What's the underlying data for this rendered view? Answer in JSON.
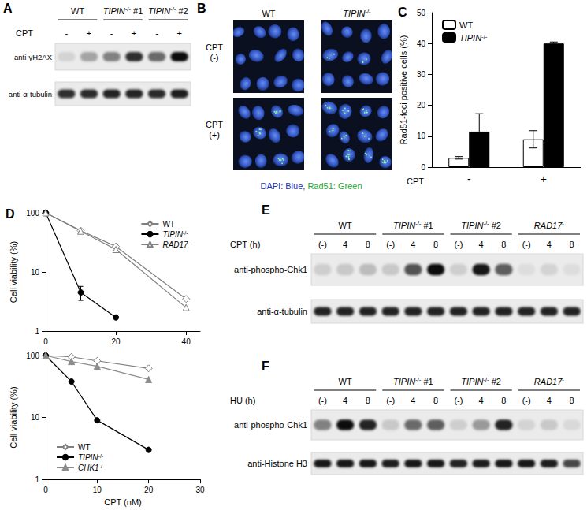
{
  "panels": [
    {
      "panel": "A",
      "groups": [
        "WT",
        "TIPIN-/- #1",
        "TIPIN-/- #2"
      ],
      "treatment": "CPT",
      "conditions": [
        "-",
        "+",
        "-",
        "+",
        "-",
        "+"
      ],
      "rows": [
        {
          "antibody": "anti-γH2AX",
          "band_intensity": [
            0.1,
            0.3,
            0.45,
            0.8,
            0.55,
            0.95
          ]
        },
        {
          "antibody": "anti-α-tubulin",
          "band_intensity": [
            0.8,
            0.82,
            0.85,
            0.85,
            0.82,
            0.88
          ]
        }
      ]
    },
    {
      "panel": "B",
      "columns": [
        "WT",
        "TIPIN-/-"
      ],
      "rows": [
        "CPT (-)",
        "CPT (+)"
      ],
      "caption": [
        {
          "text": "DAPI: Blue,",
          "color": "#2233bb"
        },
        {
          "text": "Rad51: Green",
          "color": "#22aa33"
        }
      ]
    },
    {
      "panel": "E",
      "groups": [
        "WT",
        "TIPIN-/- #1",
        "TIPIN-/- #2",
        "RAD17-"
      ],
      "treatment": "CPT (h)",
      "conditions": [
        "(-)",
        "4",
        "8",
        "(-)",
        "4",
        "8",
        "(-)",
        "4",
        "8",
        "(-)",
        "4",
        "8"
      ],
      "rows": [
        {
          "antibody": "anti-phospho-Chk1",
          "band_intensity": [
            0.12,
            0.15,
            0.2,
            0.15,
            0.65,
            0.95,
            0.12,
            0.9,
            0.6,
            0.06,
            0.1,
            0.06
          ]
        },
        {
          "antibody": "anti-α-tubulin",
          "band_intensity": [
            0.85,
            0.85,
            0.85,
            0.85,
            0.85,
            0.85,
            0.85,
            0.85,
            0.85,
            0.85,
            0.85,
            0.85
          ]
        }
      ]
    },
    {
      "panel": "F",
      "groups": [
        "WT",
        "TIPIN-/- #1",
        "TIPIN-/- #2",
        "RAD17-"
      ],
      "treatment": "HU (h)",
      "conditions": [
        "(-)",
        "4",
        "8",
        "(-)",
        "4",
        "8",
        "(-)",
        "4",
        "8",
        "(-)",
        "4",
        "8"
      ],
      "rows": [
        {
          "antibody": "anti-phospho-Chk1",
          "band_intensity": [
            0.45,
            0.95,
            0.85,
            0.15,
            0.55,
            0.6,
            0.12,
            0.35,
            0.85,
            0.1,
            0.15,
            0.08
          ]
        },
        {
          "antibody": "anti-Histone H3",
          "band_intensity": [
            0.9,
            0.9,
            0.9,
            0.88,
            0.9,
            0.9,
            0.85,
            0.88,
            0.9,
            0.9,
            0.88,
            0.7
          ]
        }
      ]
    }
  ],
  "chart_data": [
    {
      "panel": "C",
      "type": "bar",
      "x_label": "CPT",
      "y_label": "Rad51-foci positive cells (%)",
      "categories": [
        "-",
        "+"
      ],
      "series": [
        {
          "name": "WT",
          "color": "#ffffff",
          "values": [
            3,
            9
          ],
          "errors": [
            0.4,
            2.8
          ]
        },
        {
          "name": "TIPIN-/-",
          "color": "#000000",
          "values": [
            11.5,
            40
          ],
          "errors": [
            5.8,
            0.5
          ]
        }
      ],
      "ylim": [
        0,
        50
      ],
      "yticks": [
        0,
        10,
        20,
        30,
        40,
        50
      ],
      "grid": false,
      "legend": "top-left"
    },
    {
      "panel": "D",
      "type": "line",
      "y_label": "Cell viability (%)",
      "series": [
        {
          "name": "WT",
          "color": "#7f7f7f",
          "marker": "diamond-open",
          "x": [
            0,
            10,
            20,
            40
          ],
          "values": [
            100,
            50,
            27,
            3.5
          ]
        },
        {
          "name": "TIPIN-/-",
          "color": "#000000",
          "marker": "circle",
          "x": [
            0,
            10,
            20
          ],
          "values": [
            100,
            4.5,
            1.7
          ],
          "errors": [
            null,
            1.2,
            null
          ]
        },
        {
          "name": "RAD17-",
          "color": "#7f7f7f",
          "marker": "triangle-open",
          "x": [
            0,
            10,
            20,
            40
          ],
          "values": [
            100,
            49,
            24,
            2.5
          ]
        }
      ],
      "xlim": [
        0,
        44
      ],
      "xticks": [
        0,
        20,
        40
      ],
      "ylim": [
        1,
        100
      ],
      "yticks": [
        1,
        10,
        100
      ],
      "log": "y",
      "grid": false,
      "legend": "top-right"
    },
    {
      "type": "line",
      "x_label": "CPT (nM)",
      "y_label": "Cell viability (%)",
      "series": [
        {
          "name": "WT",
          "color": "#7f7f7f",
          "marker": "diamond-open",
          "x": [
            0,
            5,
            10,
            20
          ],
          "values": [
            100,
            95,
            82,
            62
          ]
        },
        {
          "name": "TIPIN-/-",
          "color": "#000000",
          "marker": "circle",
          "x": [
            0,
            5,
            10,
            20
          ],
          "values": [
            100,
            38,
            9,
            3
          ]
        },
        {
          "name": "CHK1-/-",
          "color": "#8c8c8c",
          "marker": "triangle",
          "x": [
            0,
            5,
            10,
            20
          ],
          "values": [
            100,
            80,
            67,
            41
          ]
        }
      ],
      "xlim": [
        0,
        30
      ],
      "xticks": [
        0,
        10,
        20,
        30
      ],
      "ylim": [
        1,
        100
      ],
      "yticks": [
        1,
        10,
        100
      ],
      "log": "y",
      "grid": false,
      "legend": "bottom-left"
    }
  ]
}
